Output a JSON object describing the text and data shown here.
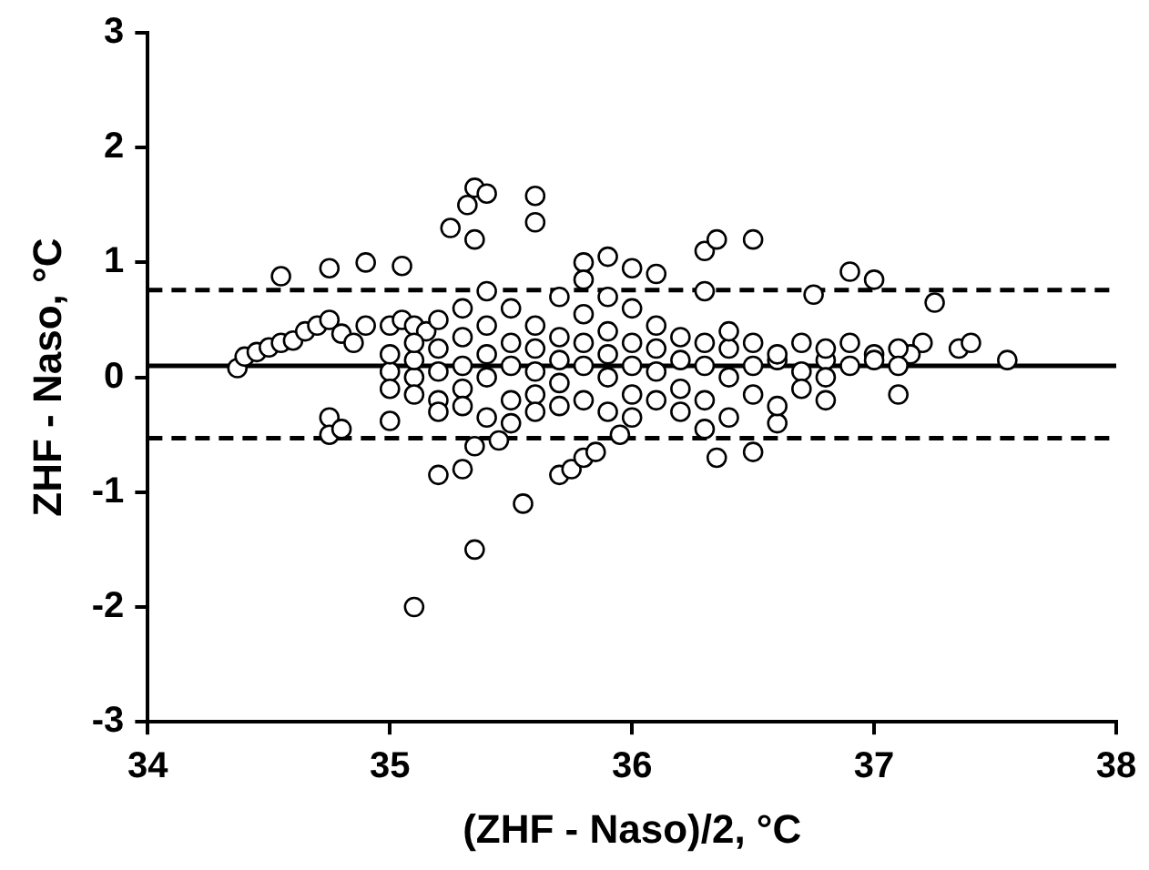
{
  "chart_data": {
    "type": "scatter",
    "xlabel": "(ZHF - Naso)/2, °C",
    "ylabel": "ZHF - Naso, °C",
    "x": [
      34.37,
      34.4,
      34.45,
      34.5,
      34.55,
      34.6,
      34.65,
      34.7,
      34.75,
      34.8,
      34.85,
      34.9,
      35.0,
      35.05,
      35.1,
      35.15,
      35.2,
      34.55,
      34.75,
      34.9,
      35.05,
      35.25,
      35.32,
      35.35,
      35.4,
      35.35,
      35.6,
      35.6,
      35.8,
      35.9,
      36.3,
      36.35,
      36.5,
      36.9,
      37.0,
      37.25,
      36.75,
      36.3,
      36.1,
      36.0,
      34.75,
      34.75,
      34.8,
      35.0,
      35.2,
      35.3,
      35.35,
      35.7,
      35.75,
      35.8,
      35.85,
      36.35,
      36.5,
      36.3,
      36.6,
      35.55,
      35.1,
      35.35,
      35.45,
      35.95,
      36.8,
      37.1,
      37.55,
      37.35,
      37.4,
      37.2,
      37.15,
      35.0,
      35.0,
      35.0,
      35.1,
      35.1,
      35.1,
      35.1,
      35.2,
      35.2,
      35.2,
      35.2,
      35.3,
      35.3,
      35.3,
      35.3,
      35.3,
      35.4,
      35.4,
      35.4,
      35.4,
      35.4,
      35.5,
      35.5,
      35.5,
      35.5,
      35.5,
      35.6,
      35.6,
      35.6,
      35.6,
      35.6,
      35.7,
      35.7,
      35.7,
      35.7,
      35.7,
      35.8,
      35.8,
      35.8,
      35.8,
      35.8,
      35.9,
      35.9,
      35.9,
      35.9,
      35.9,
      36.0,
      36.0,
      36.0,
      36.0,
      36.0,
      36.1,
      36.1,
      36.1,
      36.1,
      36.2,
      36.2,
      36.2,
      36.2,
      36.3,
      36.3,
      36.3,
      36.4,
      36.4,
      36.4,
      36.4,
      36.5,
      36.5,
      36.5,
      36.6,
      36.6,
      36.6,
      36.7,
      36.7,
      36.7,
      36.8,
      36.8,
      36.8,
      36.9,
      36.9,
      37.0,
      37.0,
      37.1,
      37.1
    ],
    "values": [
      0.08,
      0.18,
      0.22,
      0.26,
      0.3,
      0.32,
      0.4,
      0.45,
      0.5,
      0.38,
      0.3,
      0.45,
      0.45,
      0.5,
      0.45,
      0.4,
      0.5,
      0.88,
      0.95,
      1.0,
      0.97,
      1.3,
      1.5,
      1.65,
      1.6,
      1.2,
      1.58,
      1.35,
      1.0,
      1.05,
      1.1,
      1.2,
      1.2,
      0.92,
      0.85,
      0.65,
      0.72,
      0.75,
      0.9,
      0.95,
      -0.35,
      -0.5,
      -0.45,
      -0.38,
      -0.85,
      -0.8,
      -0.6,
      -0.85,
      -0.8,
      -0.7,
      -0.65,
      -0.7,
      -0.65,
      -0.45,
      -0.4,
      -1.1,
      -2.0,
      -1.5,
      -0.55,
      -0.5,
      -0.2,
      -0.15,
      0.15,
      0.25,
      0.3,
      0.3,
      0.2,
      0.05,
      -0.1,
      0.2,
      0.0,
      -0.15,
      0.15,
      0.3,
      0.05,
      -0.2,
      0.25,
      -0.3,
      0.1,
      -0.1,
      0.35,
      -0.25,
      0.6,
      0.0,
      0.2,
      -0.35,
      0.45,
      0.75,
      0.1,
      -0.2,
      0.3,
      0.6,
      -0.4,
      0.05,
      0.25,
      -0.15,
      0.45,
      -0.3,
      0.15,
      -0.05,
      0.35,
      0.7,
      -0.25,
      0.1,
      0.3,
      -0.2,
      0.55,
      0.85,
      0.0,
      0.2,
      -0.3,
      0.4,
      0.7,
      0.1,
      -0.15,
      0.3,
      0.6,
      -0.35,
      0.05,
      0.25,
      -0.2,
      0.45,
      0.15,
      -0.1,
      0.35,
      -0.3,
      0.1,
      0.3,
      -0.2,
      0.0,
      0.25,
      -0.35,
      0.4,
      0.1,
      -0.15,
      0.3,
      0.15,
      -0.25,
      0.2,
      0.05,
      0.3,
      -0.1,
      0.15,
      0.25,
      0.0,
      0.1,
      0.3,
      0.2,
      0.15,
      0.25,
      0.1
    ],
    "color": "#000000",
    "marker": "circle",
    "xlim": [
      34,
      38
    ],
    "xticks": [
      34,
      35,
      36,
      37,
      38
    ],
    "ylim": [
      -3,
      3
    ],
    "yticks": [
      -3,
      -2,
      -1,
      0,
      1,
      2,
      3
    ],
    "ref_lines": [
      {
        "axis": "y",
        "value": 0.1,
        "line_style": "solid"
      },
      {
        "axis": "y",
        "value": 0.76,
        "line_style": "dashed"
      },
      {
        "axis": "y",
        "value": -0.53,
        "line_style": "dashed"
      }
    ],
    "grid": false,
    "legend": false
  }
}
